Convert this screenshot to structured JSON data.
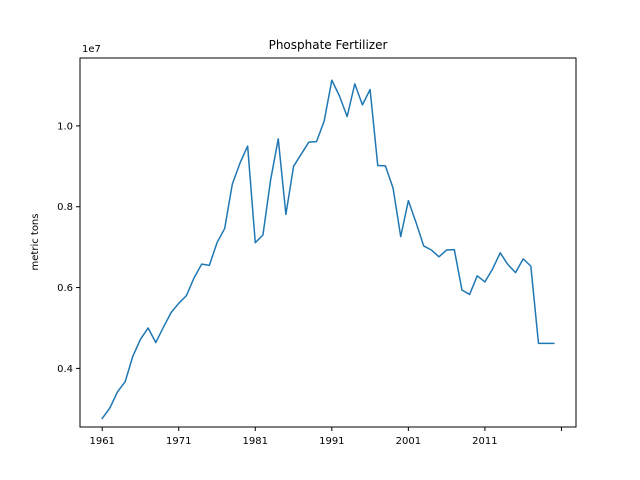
{
  "chart_data": {
    "type": "line",
    "title": "Phosphate Fertilizer",
    "xlabel": "",
    "ylabel": "metric tons",
    "offset_text": "1e7",
    "x_tick_labels": [
      "1961",
      "1971",
      "1981",
      "1991",
      "2001",
      "2011",
      ""
    ],
    "x_ticks": [
      1961,
      1971,
      1981,
      1991,
      2001,
      2011,
      2021
    ],
    "y_tick_labels": [
      "0.4",
      "0.6",
      "0.8",
      "1.0"
    ],
    "y_ticks": [
      0.4,
      0.6,
      0.8,
      1.0
    ],
    "xlim": [
      1958.1,
      2022.9
    ],
    "ylim": [
      0.255,
      1.168
    ],
    "grid": false,
    "line_color": "#1f77b4",
    "series": [
      {
        "x": [
          1961,
          1962,
          1963,
          1964,
          1965,
          1966,
          1967,
          1968,
          1969,
          1970,
          1971,
          1972,
          1973,
          1974,
          1975,
          1976,
          1977,
          1978,
          1979,
          1980,
          1981,
          1982,
          1983,
          1984,
          1985,
          1986,
          1987,
          1988,
          1989,
          1990,
          1991,
          1992,
          1993,
          1994,
          1995,
          1996,
          1997,
          1998,
          1999,
          2000,
          2001,
          2002,
          2003,
          2004,
          2005,
          2006,
          2007,
          2008,
          2009,
          2010,
          2011,
          2012,
          2013,
          2014,
          2015,
          2016,
          2017,
          2018,
          2019,
          2020
        ],
        "values": [
          0.276,
          0.302,
          0.342,
          0.367,
          0.43,
          0.472,
          0.5,
          0.464,
          0.502,
          0.538,
          0.561,
          0.58,
          0.624,
          0.658,
          0.655,
          0.711,
          0.746,
          0.856,
          0.908,
          0.95,
          0.711,
          0.73,
          0.866,
          0.968,
          0.781,
          0.9,
          0.93,
          0.96,
          0.961,
          1.012,
          1.113,
          1.074,
          1.023,
          1.104,
          1.052,
          1.09,
          0.902,
          0.901,
          0.846,
          0.726,
          0.815,
          0.761,
          0.703,
          0.693,
          0.676,
          0.693,
          0.694,
          0.594,
          0.583,
          0.629,
          0.614,
          0.646,
          0.686,
          0.657,
          0.637,
          0.671,
          0.653,
          0.462,
          0.462,
          0.462
        ]
      }
    ]
  }
}
